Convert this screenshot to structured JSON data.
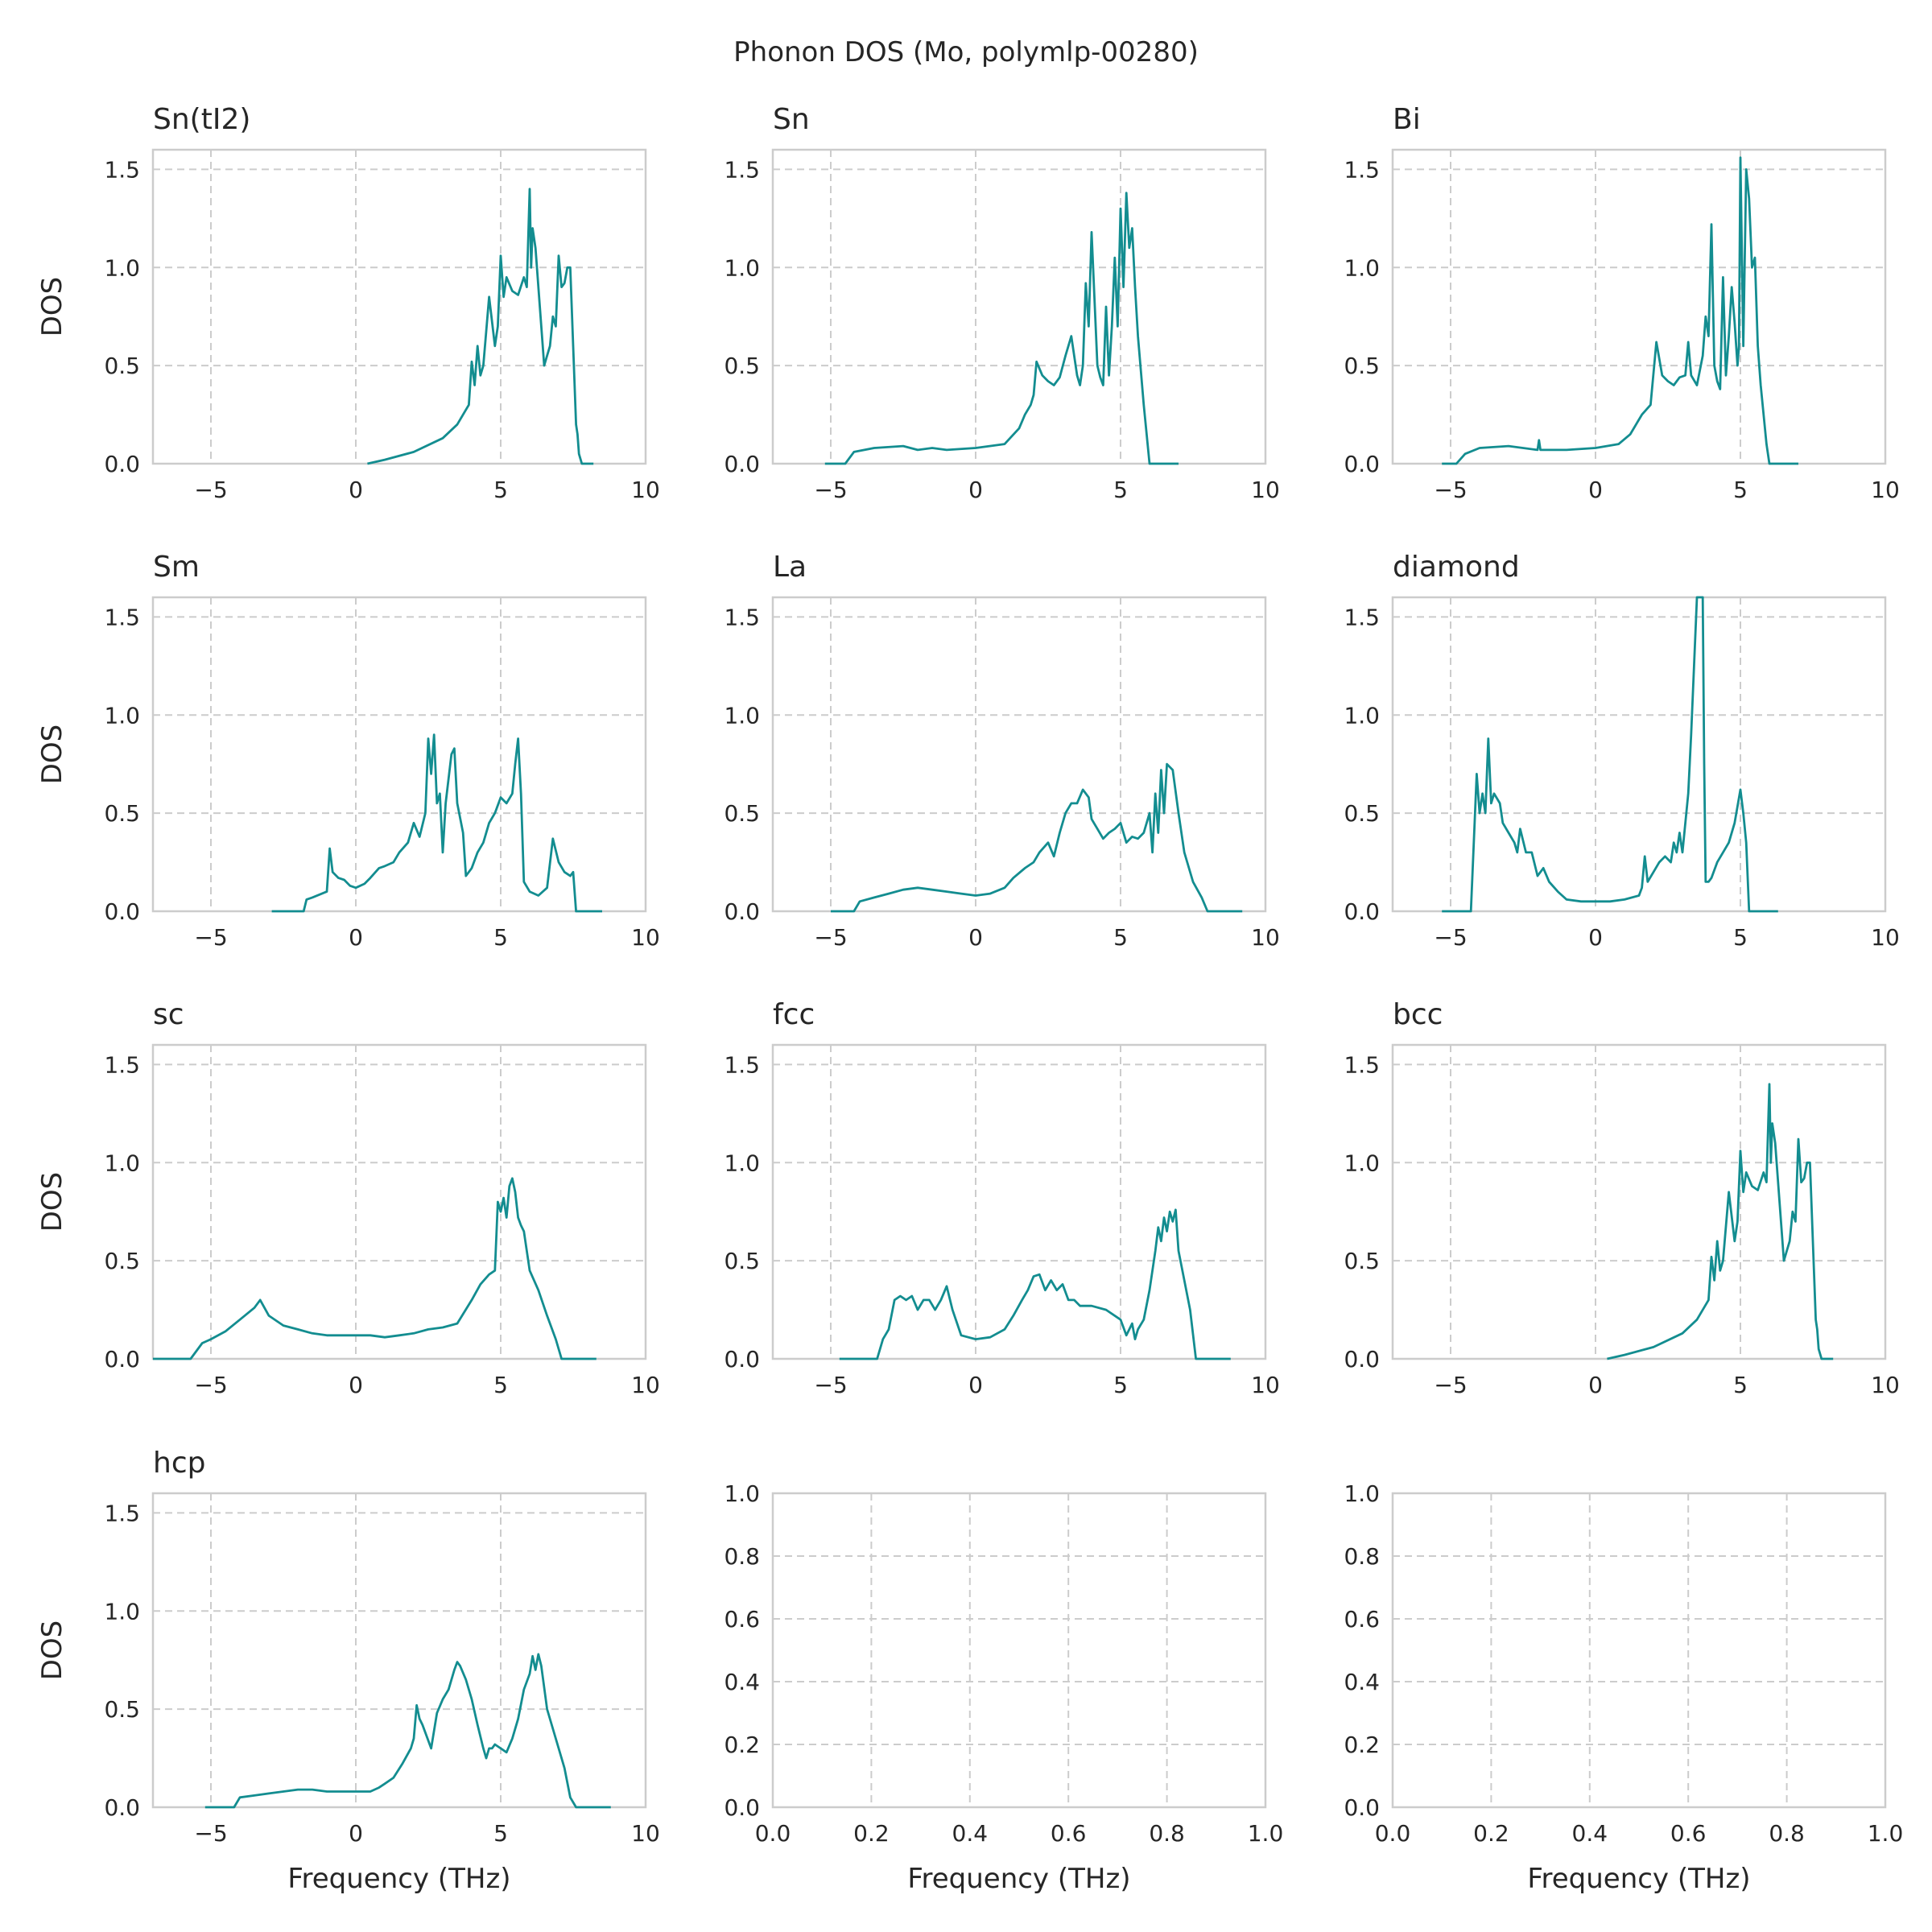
{
  "figure_title": "Phonon DOS (Mo, polymlp-00280)",
  "colors": {
    "line": "#138d90",
    "grid": "#cccccc",
    "frame": "#cccccc",
    "text": "#262626"
  },
  "chart_data": [
    {
      "type": "line",
      "title": "Sn(tI2)",
      "xlabel": "",
      "ylabel": "DOS",
      "xlim": [
        -7,
        10
      ],
      "ylim": [
        0,
        1.6
      ],
      "xticks": [
        "−5",
        "0",
        "5",
        "10"
      ],
      "yticks": [
        "0.0",
        "0.5",
        "1.0",
        "1.5"
      ],
      "x": [
        0.4,
        1.0,
        2.0,
        3.0,
        3.5,
        3.9,
        4.0,
        4.1,
        4.2,
        4.3,
        4.4,
        4.6,
        4.8,
        4.9,
        5.0,
        5.1,
        5.2,
        5.4,
        5.6,
        5.8,
        5.9,
        6.0,
        6.05,
        6.1,
        6.2,
        6.4,
        6.5,
        6.6,
        6.7,
        6.8,
        6.9,
        7.0,
        7.1,
        7.2,
        7.3,
        7.4,
        7.5,
        7.6,
        7.65,
        7.7,
        7.8,
        8.2
      ],
      "y": [
        0.0,
        0.02,
        0.06,
        0.13,
        0.2,
        0.3,
        0.52,
        0.4,
        0.6,
        0.45,
        0.5,
        0.85,
        0.6,
        0.7,
        1.06,
        0.85,
        0.95,
        0.88,
        0.86,
        0.95,
        0.9,
        1.4,
        1.0,
        1.2,
        1.1,
        0.7,
        0.5,
        0.55,
        0.6,
        0.75,
        0.7,
        1.06,
        0.9,
        0.92,
        1.0,
        1.0,
        0.6,
        0.2,
        0.15,
        0.05,
        0.0,
        0.0
      ]
    },
    {
      "type": "line",
      "title": "Sn",
      "xlabel": "",
      "ylabel": "",
      "xlim": [
        -7,
        10
      ],
      "ylim": [
        0,
        1.6
      ],
      "xticks": [
        "−5",
        "0",
        "5",
        "10"
      ],
      "yticks": [
        "0.0",
        "0.5",
        "1.0",
        "1.5"
      ],
      "x": [
        -5.2,
        -4.5,
        -4.2,
        -3.5,
        -2.5,
        -2.0,
        -1.5,
        -1.0,
        0.0,
        1.0,
        1.5,
        1.7,
        1.9,
        2.0,
        2.1,
        2.3,
        2.5,
        2.7,
        2.9,
        3.1,
        3.3,
        3.5,
        3.6,
        3.7,
        3.8,
        3.9,
        4.0,
        4.2,
        4.3,
        4.4,
        4.5,
        4.6,
        4.7,
        4.8,
        4.9,
        5.0,
        5.1,
        5.2,
        5.3,
        5.4,
        5.5,
        5.6,
        5.8,
        6.0,
        7.0
      ],
      "y": [
        0.0,
        0.0,
        0.06,
        0.08,
        0.09,
        0.07,
        0.08,
        0.07,
        0.08,
        0.1,
        0.18,
        0.25,
        0.3,
        0.35,
        0.52,
        0.45,
        0.42,
        0.4,
        0.44,
        0.55,
        0.65,
        0.45,
        0.4,
        0.5,
        0.92,
        0.7,
        1.18,
        0.5,
        0.44,
        0.4,
        0.8,
        0.45,
        0.7,
        1.05,
        0.7,
        1.3,
        0.9,
        1.38,
        1.1,
        1.2,
        0.9,
        0.65,
        0.3,
        0.0,
        0.0
      ]
    },
    {
      "type": "line",
      "title": "Bi",
      "xlabel": "",
      "ylabel": "",
      "xlim": [
        -7,
        10
      ],
      "ylim": [
        0,
        1.6
      ],
      "xticks": [
        "−5",
        "0",
        "5",
        "10"
      ],
      "yticks": [
        "0.0",
        "0.5",
        "1.0",
        "1.5"
      ],
      "x": [
        -5.3,
        -4.8,
        -4.5,
        -4.0,
        -3.0,
        -2.0,
        -1.95,
        -1.9,
        -1.5,
        -1.0,
        0.0,
        0.8,
        1.2,
        1.6,
        1.9,
        2.1,
        2.3,
        2.5,
        2.7,
        2.9,
        3.1,
        3.2,
        3.3,
        3.5,
        3.7,
        3.8,
        3.9,
        4.0,
        4.1,
        4.2,
        4.3,
        4.4,
        4.5,
        4.6,
        4.7,
        4.8,
        4.9,
        4.95,
        5.0,
        5.1,
        5.2,
        5.3,
        5.4,
        5.5,
        5.6,
        5.7,
        5.9,
        6.0,
        7.0
      ],
      "y": [
        0.0,
        0.0,
        0.05,
        0.08,
        0.09,
        0.07,
        0.12,
        0.07,
        0.07,
        0.07,
        0.08,
        0.1,
        0.15,
        0.25,
        0.3,
        0.62,
        0.45,
        0.42,
        0.4,
        0.44,
        0.45,
        0.62,
        0.45,
        0.4,
        0.55,
        0.75,
        0.65,
        1.22,
        0.5,
        0.42,
        0.38,
        0.95,
        0.45,
        0.65,
        0.9,
        0.72,
        0.5,
        0.6,
        1.56,
        0.6,
        1.5,
        1.35,
        1.0,
        1.05,
        0.6,
        0.4,
        0.1,
        0.0,
        0.0
      ]
    },
    {
      "type": "line",
      "title": "Sm",
      "xlabel": "",
      "ylabel": "DOS",
      "xlim": [
        -7,
        10
      ],
      "ylim": [
        0,
        1.6
      ],
      "xticks": [
        "−5",
        "0",
        "5",
        "10"
      ],
      "yticks": [
        "0.0",
        "0.5",
        "1.0",
        "1.5"
      ],
      "x": [
        -2.9,
        -1.8,
        -1.7,
        -1.5,
        -1.0,
        -0.9,
        -0.8,
        -0.6,
        -0.4,
        -0.2,
        0.0,
        0.3,
        0.5,
        0.8,
        1.0,
        1.3,
        1.5,
        1.8,
        2.0,
        2.2,
        2.4,
        2.5,
        2.6,
        2.7,
        2.8,
        2.9,
        3.0,
        3.1,
        3.3,
        3.4,
        3.5,
        3.7,
        3.8,
        4.0,
        4.2,
        4.4,
        4.6,
        4.8,
        5.0,
        5.2,
        5.4,
        5.5,
        5.6,
        5.7,
        5.8,
        6.0,
        6.3,
        6.6,
        6.8,
        7.0,
        7.2,
        7.4,
        7.5,
        7.6,
        7.8,
        8.5
      ],
      "y": [
        0.0,
        0.0,
        0.06,
        0.07,
        0.1,
        0.32,
        0.2,
        0.17,
        0.16,
        0.13,
        0.12,
        0.14,
        0.17,
        0.22,
        0.23,
        0.25,
        0.3,
        0.35,
        0.45,
        0.38,
        0.5,
        0.88,
        0.7,
        0.9,
        0.55,
        0.6,
        0.3,
        0.55,
        0.8,
        0.83,
        0.55,
        0.4,
        0.18,
        0.22,
        0.3,
        0.35,
        0.45,
        0.5,
        0.58,
        0.55,
        0.6,
        0.75,
        0.88,
        0.6,
        0.15,
        0.1,
        0.08,
        0.12,
        0.37,
        0.25,
        0.2,
        0.18,
        0.2,
        0.0,
        0.0,
        0.0
      ]
    },
    {
      "type": "line",
      "title": "La",
      "xlabel": "",
      "ylabel": "",
      "xlim": [
        -7,
        10
      ],
      "ylim": [
        0,
        1.6
      ],
      "xticks": [
        "−5",
        "0",
        "5",
        "10"
      ],
      "yticks": [
        "0.0",
        "0.5",
        "1.0",
        "1.5"
      ],
      "x": [
        -5.0,
        -4.2,
        -4.0,
        -3.5,
        -3.0,
        -2.5,
        -2.0,
        -1.5,
        -1.0,
        -0.5,
        0.0,
        0.5,
        1.0,
        1.3,
        1.7,
        2.0,
        2.2,
        2.5,
        2.7,
        2.9,
        3.1,
        3.3,
        3.5,
        3.7,
        3.9,
        4.0,
        4.2,
        4.4,
        4.6,
        4.8,
        5.0,
        5.2,
        5.4,
        5.6,
        5.8,
        6.0,
        6.1,
        6.2,
        6.3,
        6.4,
        6.5,
        6.6,
        6.8,
        7.0,
        7.2,
        7.5,
        7.8,
        8.0,
        9.2
      ],
      "y": [
        0.0,
        0.0,
        0.05,
        0.07,
        0.09,
        0.11,
        0.12,
        0.11,
        0.1,
        0.09,
        0.08,
        0.09,
        0.12,
        0.17,
        0.22,
        0.25,
        0.3,
        0.35,
        0.28,
        0.4,
        0.5,
        0.55,
        0.55,
        0.62,
        0.58,
        0.47,
        0.42,
        0.37,
        0.4,
        0.42,
        0.45,
        0.35,
        0.38,
        0.37,
        0.4,
        0.5,
        0.3,
        0.6,
        0.4,
        0.72,
        0.5,
        0.75,
        0.72,
        0.5,
        0.3,
        0.15,
        0.07,
        0.0,
        0.0
      ]
    },
    {
      "type": "line",
      "title": "diamond",
      "xlabel": "",
      "ylabel": "",
      "xlim": [
        -7,
        10
      ],
      "ylim": [
        0,
        1.6
      ],
      "xticks": [
        "−5",
        "0",
        "5",
        "10"
      ],
      "yticks": [
        "0.0",
        "0.5",
        "1.0",
        "1.5"
      ],
      "x": [
        -5.3,
        -4.3,
        -4.1,
        -4.0,
        -3.9,
        -3.8,
        -3.7,
        -3.6,
        -3.5,
        -3.3,
        -3.2,
        -3.0,
        -2.8,
        -2.7,
        -2.6,
        -2.4,
        -2.2,
        -2.0,
        -1.8,
        -1.6,
        -1.3,
        -1.0,
        -0.5,
        0.0,
        0.5,
        1.0,
        1.5,
        1.6,
        1.7,
        1.8,
        2.0,
        2.2,
        2.4,
        2.6,
        2.7,
        2.8,
        2.9,
        3.0,
        3.1,
        3.2,
        3.3,
        3.4,
        3.5,
        3.6,
        3.7,
        3.75,
        3.8,
        3.9,
        4.0,
        4.2,
        4.4,
        4.6,
        4.8,
        5.0,
        5.1,
        5.2,
        5.3,
        5.4,
        6.3
      ],
      "y": [
        0.0,
        0.0,
        0.7,
        0.5,
        0.6,
        0.5,
        0.88,
        0.55,
        0.6,
        0.55,
        0.45,
        0.4,
        0.35,
        0.3,
        0.42,
        0.3,
        0.3,
        0.18,
        0.22,
        0.15,
        0.1,
        0.06,
        0.05,
        0.05,
        0.05,
        0.06,
        0.08,
        0.12,
        0.28,
        0.15,
        0.2,
        0.25,
        0.28,
        0.25,
        0.35,
        0.3,
        0.4,
        0.3,
        0.45,
        0.6,
        0.9,
        1.25,
        1.6,
        1.6,
        1.6,
        0.75,
        0.15,
        0.15,
        0.17,
        0.25,
        0.3,
        0.35,
        0.45,
        0.62,
        0.5,
        0.35,
        0.0,
        0.0,
        0.0
      ]
    },
    {
      "type": "line",
      "title": "sc",
      "xlabel": "",
      "ylabel": "DOS",
      "xlim": [
        -7,
        10
      ],
      "ylim": [
        0,
        1.6
      ],
      "xticks": [
        "−5",
        "0",
        "5",
        "10"
      ],
      "yticks": [
        "0.0",
        "0.5",
        "1.0",
        "1.5"
      ],
      "x": [
        -7.0,
        -5.7,
        -5.3,
        -5.0,
        -4.5,
        -4.0,
        -3.5,
        -3.3,
        -3.0,
        -2.5,
        -2.0,
        -1.5,
        -1.0,
        0.0,
        0.5,
        1.0,
        1.5,
        2.0,
        2.5,
        3.0,
        3.5,
        4.0,
        4.3,
        4.6,
        4.8,
        4.9,
        5.0,
        5.1,
        5.2,
        5.3,
        5.4,
        5.5,
        5.6,
        5.7,
        5.8,
        6.0,
        6.3,
        6.6,
        6.9,
        7.1,
        8.3
      ],
      "y": [
        0.0,
        0.0,
        0.08,
        0.1,
        0.14,
        0.2,
        0.26,
        0.3,
        0.22,
        0.17,
        0.15,
        0.13,
        0.12,
        0.12,
        0.12,
        0.11,
        0.12,
        0.13,
        0.15,
        0.16,
        0.18,
        0.3,
        0.38,
        0.43,
        0.45,
        0.8,
        0.75,
        0.82,
        0.72,
        0.88,
        0.92,
        0.85,
        0.72,
        0.68,
        0.65,
        0.45,
        0.35,
        0.22,
        0.1,
        0.0,
        0.0
      ]
    },
    {
      "type": "line",
      "title": "fcc",
      "xlabel": "",
      "ylabel": "",
      "xlim": [
        -7,
        10
      ],
      "ylim": [
        0,
        1.6
      ],
      "xticks": [
        "−5",
        "0",
        "5",
        "10"
      ],
      "yticks": [
        "0.0",
        "0.5",
        "1.0",
        "1.5"
      ],
      "x": [
        -4.7,
        -3.4,
        -3.2,
        -3.0,
        -2.8,
        -2.6,
        -2.4,
        -2.2,
        -2.0,
        -1.8,
        -1.6,
        -1.4,
        -1.2,
        -1.0,
        -0.8,
        -0.5,
        0.0,
        0.5,
        1.0,
        1.3,
        1.6,
        1.8,
        2.0,
        2.2,
        2.4,
        2.6,
        2.8,
        3.0,
        3.2,
        3.4,
        3.6,
        4.0,
        4.5,
        5.0,
        5.2,
        5.4,
        5.5,
        5.6,
        5.8,
        6.0,
        6.2,
        6.3,
        6.4,
        6.5,
        6.6,
        6.7,
        6.8,
        6.9,
        7.0,
        7.2,
        7.4,
        7.6,
        8.8
      ],
      "y": [
        0.0,
        0.0,
        0.1,
        0.15,
        0.3,
        0.32,
        0.3,
        0.32,
        0.25,
        0.3,
        0.3,
        0.25,
        0.3,
        0.37,
        0.25,
        0.12,
        0.1,
        0.11,
        0.15,
        0.22,
        0.3,
        0.35,
        0.42,
        0.43,
        0.35,
        0.4,
        0.35,
        0.38,
        0.3,
        0.3,
        0.27,
        0.27,
        0.25,
        0.2,
        0.12,
        0.18,
        0.1,
        0.15,
        0.2,
        0.35,
        0.55,
        0.67,
        0.6,
        0.72,
        0.65,
        0.75,
        0.7,
        0.76,
        0.55,
        0.4,
        0.25,
        0.0,
        0.0
      ]
    },
    {
      "type": "line",
      "title": "bcc",
      "xlabel": "",
      "ylabel": "",
      "xlim": [
        -7,
        10
      ],
      "ylim": [
        0,
        1.6
      ],
      "xticks": [
        "−5",
        "0",
        "5",
        "10"
      ],
      "yticks": [
        "0.0",
        "0.5",
        "1.0",
        "1.5"
      ],
      "x": [
        0.4,
        1.0,
        2.0,
        3.0,
        3.5,
        3.9,
        4.0,
        4.1,
        4.2,
        4.3,
        4.4,
        4.6,
        4.8,
        4.9,
        5.0,
        5.1,
        5.2,
        5.4,
        5.6,
        5.8,
        5.9,
        6.0,
        6.05,
        6.1,
        6.2,
        6.4,
        6.5,
        6.6,
        6.7,
        6.8,
        6.9,
        7.0,
        7.1,
        7.2,
        7.3,
        7.4,
        7.5,
        7.6,
        7.65,
        7.7,
        7.8,
        8.2
      ],
      "y": [
        0.0,
        0.02,
        0.06,
        0.13,
        0.2,
        0.3,
        0.52,
        0.4,
        0.6,
        0.45,
        0.5,
        0.85,
        0.6,
        0.7,
        1.06,
        0.85,
        0.95,
        0.88,
        0.86,
        0.95,
        0.9,
        1.4,
        1.0,
        1.2,
        1.1,
        0.7,
        0.5,
        0.55,
        0.6,
        0.75,
        0.7,
        1.12,
        0.9,
        0.92,
        1.0,
        1.0,
        0.6,
        0.2,
        0.15,
        0.05,
        0.0,
        0.0
      ]
    },
    {
      "type": "line",
      "title": "hcp",
      "xlabel": "Frequency (THz)",
      "ylabel": "DOS",
      "xlim": [
        -7,
        10
      ],
      "ylim": [
        0,
        1.6
      ],
      "xticks": [
        "−5",
        "0",
        "5",
        "10"
      ],
      "yticks": [
        "0.0",
        "0.5",
        "1.0",
        "1.5"
      ],
      "x": [
        -5.2,
        -4.2,
        -4.0,
        -3.5,
        -3.0,
        -2.5,
        -2.0,
        -1.5,
        -1.0,
        -0.5,
        0.0,
        0.5,
        0.8,
        1.0,
        1.3,
        1.6,
        1.9,
        2.0,
        2.1,
        2.2,
        2.3,
        2.4,
        2.6,
        2.8,
        3.0,
        3.2,
        3.4,
        3.5,
        3.6,
        3.8,
        4.0,
        4.2,
        4.4,
        4.5,
        4.6,
        4.7,
        4.8,
        5.0,
        5.2,
        5.4,
        5.6,
        5.8,
        6.0,
        6.1,
        6.2,
        6.3,
        6.4,
        6.6,
        6.8,
        7.0,
        7.2,
        7.4,
        7.6,
        8.8
      ],
      "y": [
        0.0,
        0.0,
        0.05,
        0.06,
        0.07,
        0.08,
        0.09,
        0.09,
        0.08,
        0.08,
        0.08,
        0.08,
        0.1,
        0.12,
        0.15,
        0.22,
        0.3,
        0.35,
        0.52,
        0.45,
        0.42,
        0.38,
        0.3,
        0.48,
        0.55,
        0.6,
        0.7,
        0.74,
        0.72,
        0.65,
        0.55,
        0.42,
        0.3,
        0.25,
        0.3,
        0.3,
        0.32,
        0.3,
        0.28,
        0.35,
        0.45,
        0.6,
        0.68,
        0.77,
        0.7,
        0.78,
        0.72,
        0.5,
        0.4,
        0.3,
        0.2,
        0.05,
        0.0,
        0.0
      ]
    },
    {
      "type": "line",
      "title": "",
      "xlabel": "Frequency (THz)",
      "ylabel": "",
      "xlim": [
        0,
        1
      ],
      "ylim": [
        0,
        1
      ],
      "xticks": [
        "0.0",
        "0.2",
        "0.4",
        "0.6",
        "0.8",
        "1.0"
      ],
      "yticks": [
        "0.0",
        "0.2",
        "0.4",
        "0.6",
        "0.8",
        "1.0"
      ],
      "x": [],
      "y": []
    },
    {
      "type": "line",
      "title": "",
      "xlabel": "Frequency (THz)",
      "ylabel": "",
      "xlim": [
        0,
        1
      ],
      "ylim": [
        0,
        1
      ],
      "xticks": [
        "0.0",
        "0.2",
        "0.4",
        "0.6",
        "0.8",
        "1.0"
      ],
      "yticks": [
        "0.0",
        "0.2",
        "0.4",
        "0.6",
        "0.8",
        "1.0"
      ],
      "x": [],
      "y": []
    }
  ]
}
